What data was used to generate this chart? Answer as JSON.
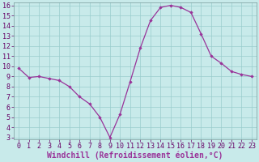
{
  "x": [
    0,
    1,
    2,
    3,
    4,
    5,
    6,
    7,
    8,
    9,
    10,
    11,
    12,
    13,
    14,
    15,
    16,
    17,
    18,
    19,
    20,
    21,
    22,
    23
  ],
  "y": [
    9.8,
    8.9,
    9.0,
    8.8,
    8.6,
    8.0,
    7.0,
    6.3,
    5.0,
    3.0,
    5.3,
    8.5,
    11.8,
    14.5,
    15.8,
    16.0,
    15.8,
    15.3,
    13.2,
    11.0,
    10.3,
    9.5,
    9.2,
    9.0
  ],
  "xlabel": "Windchill (Refroidissement éolien,°C)",
  "ylim_min": 3,
  "ylim_max": 16,
  "xlim_min": 0,
  "xlim_max": 23,
  "yticks": [
    3,
    4,
    5,
    6,
    7,
    8,
    9,
    10,
    11,
    12,
    13,
    14,
    15,
    16
  ],
  "xticks": [
    0,
    1,
    2,
    3,
    4,
    5,
    6,
    7,
    8,
    9,
    10,
    11,
    12,
    13,
    14,
    15,
    16,
    17,
    18,
    19,
    20,
    21,
    22,
    23
  ],
  "line_color": "#993399",
  "marker_color": "#993399",
  "bg_color": "#c8eaea",
  "grid_color": "#99cccc",
  "axis_bg": "#c8eaea",
  "xlabel_color": "#993399",
  "tick_color": "#660066",
  "xlabel_fontsize": 7.0,
  "tick_fontsize": 6.0,
  "marker": "D",
  "marker_size": 1.8,
  "line_width": 0.9
}
